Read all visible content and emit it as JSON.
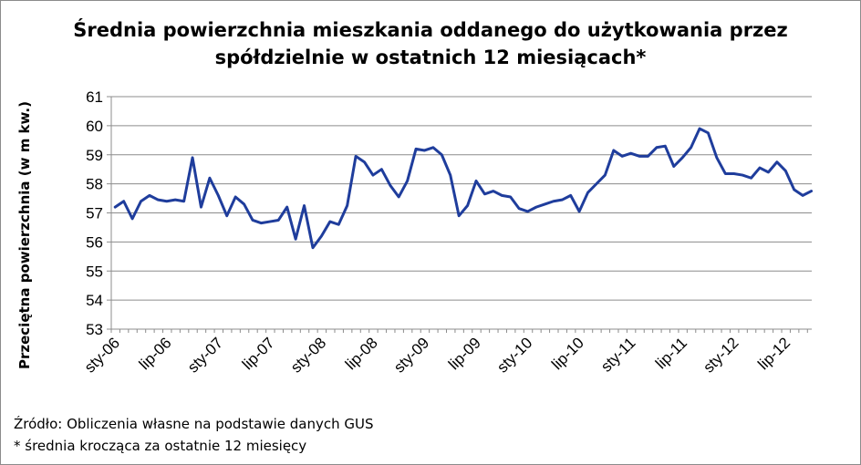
{
  "chart_data": {
    "type": "line",
    "title": [
      "Średnia powierzchnia mieszkania oddanego do użytkowania przez",
      "spółdzielnie w ostatnich 12 miesiącach*"
    ],
    "xlabel": "",
    "ylabel": "Przeciętna powierzchnia (w m kw.)",
    "ylim": [
      53,
      61
    ],
    "yticks": [
      53,
      54,
      55,
      56,
      57,
      58,
      59,
      60,
      61
    ],
    "xtick_labels": [
      "sty-06",
      "lip-06",
      "sty-07",
      "lip-07",
      "sty-08",
      "lip-08",
      "sty-09",
      "lip-09",
      "sty-10",
      "lip-10",
      "sty-11",
      "lip-11",
      "sty-12",
      "lip-12"
    ],
    "xtick_every": 6,
    "grid": "horizontal",
    "legend": "none",
    "series": [
      {
        "color": "#1f3d9c",
        "values": [
          57.2,
          57.4,
          56.8,
          57.4,
          57.6,
          57.45,
          57.4,
          57.45,
          57.4,
          58.9,
          57.2,
          58.2,
          57.6,
          56.9,
          57.55,
          57.3,
          56.75,
          56.65,
          56.7,
          56.75,
          57.2,
          56.1,
          57.25,
          55.8,
          56.2,
          56.7,
          56.6,
          57.25,
          58.95,
          58.75,
          58.3,
          58.5,
          57.95,
          57.55,
          58.1,
          59.2,
          59.15,
          59.25,
          59.0,
          58.3,
          56.9,
          57.25,
          58.1,
          57.65,
          57.75,
          57.6,
          57.55,
          57.15,
          57.05,
          57.2,
          57.3,
          57.4,
          57.45,
          57.6,
          57.05,
          57.7,
          58.0,
          58.3,
          59.15,
          58.95,
          59.05,
          58.95,
          58.95,
          59.25,
          59.3,
          58.6,
          58.9,
          59.25,
          59.9,
          59.75,
          58.9,
          58.35,
          58.35,
          58.3,
          58.2,
          58.55,
          58.4,
          58.75,
          58.45,
          57.8,
          57.6,
          57.75
        ]
      }
    ]
  },
  "notes": {
    "source": "Źródło: Obliczenia własne na podstawie danych GUS",
    "footnote": "* średnia krocząca za ostatnie 12 miesięcy"
  }
}
